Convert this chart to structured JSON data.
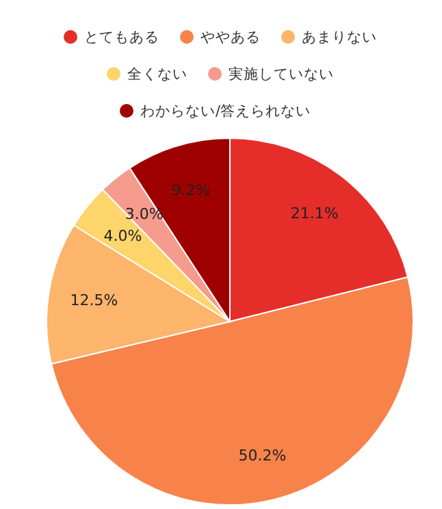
{
  "chart_data": {
    "type": "pie",
    "categories": [
      "とてもある",
      "ややある",
      "あまりない",
      "全くない",
      "実施していない",
      "わからない/答えられない"
    ],
    "values": [
      21.1,
      50.2,
      12.5,
      4.0,
      3.0,
      9.2
    ],
    "colors": [
      "#e52e2a",
      "#f7834a",
      "#fdb46b",
      "#fdd56b",
      "#f59b8e",
      "#9e0000"
    ],
    "value_labels": [
      "21.1%",
      "50.2%",
      "12.5%",
      "4.0%",
      "3.0%",
      "9.2%"
    ],
    "legend": "top"
  }
}
